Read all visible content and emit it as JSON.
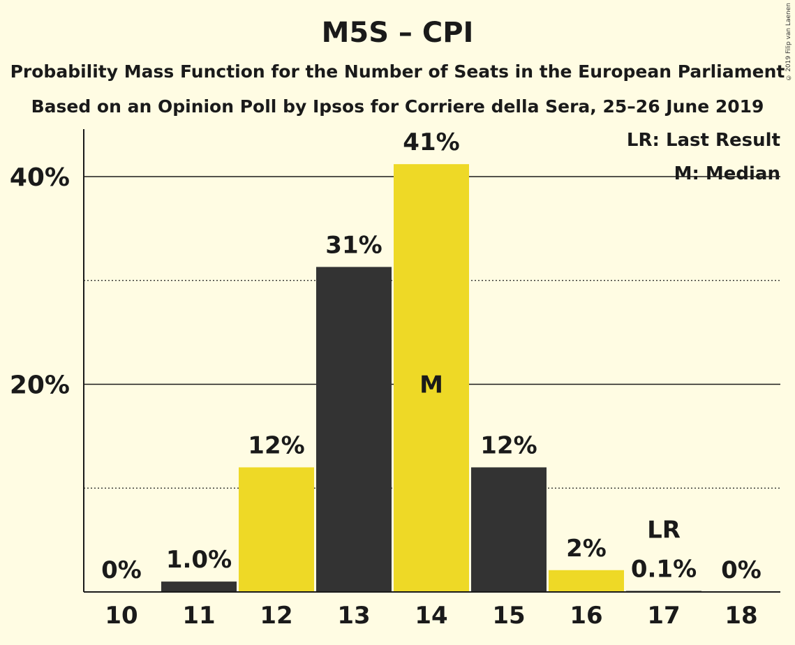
{
  "chart_data": {
    "type": "bar",
    "title": "M5S – CPI",
    "subtitle": "Probability Mass Function for the Number of Seats in the European Parliament",
    "subtitle2": "Based on an Opinion Poll by Ipsos for Corriere della Sera, 25–26 June 2019",
    "copyright": "© 2019 Filip van Laenen",
    "categories": [
      "10",
      "11",
      "12",
      "13",
      "14",
      "15",
      "16",
      "17",
      "18"
    ],
    "values": [
      0,
      1.0,
      12,
      31.3,
      41.2,
      12,
      2.1,
      0.1,
      0
    ],
    "value_labels": [
      "0%",
      "1.0%",
      "12%",
      "31%",
      "41%",
      "12%",
      "2%",
      "0.1%",
      "0%"
    ],
    "bar_colors": [
      "#333333",
      "#333333",
      "#eed926",
      "#333333",
      "#eed926",
      "#333333",
      "#eed926",
      "#333333",
      "#eed926"
    ],
    "ylim": [
      0,
      45
    ],
    "yticks": [
      {
        "value": 20,
        "label": "20%"
      },
      {
        "value": 40,
        "label": "40%"
      }
    ],
    "minor_grid": [
      10,
      30
    ],
    "median": {
      "category": "14",
      "label": "M"
    },
    "last_result": {
      "category": "17",
      "label": "LR"
    },
    "legend": [
      "LR: Last Result",
      "M: Median"
    ],
    "legend_position": "top-right",
    "colors": {
      "background": "#fffce3",
      "dark": "#333333",
      "yellow": "#eed926"
    }
  }
}
